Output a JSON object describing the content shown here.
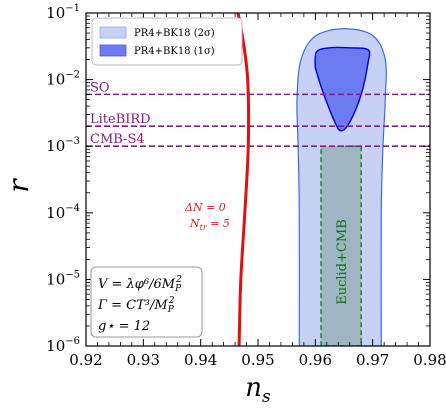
{
  "chart_data": {
    "type": "line",
    "xlabel": "n_s",
    "ylabel": "r",
    "xlim": [
      0.92,
      0.98
    ],
    "ylim": [
      1e-06,
      0.1
    ],
    "yscale": "log",
    "xticks": [
      "0.92",
      "0.93",
      "0.94",
      "0.95",
      "0.96",
      "0.97",
      "0.98"
    ],
    "yticks": [
      {
        "base": "10",
        "exp": "−6",
        "value": 1e-06
      },
      {
        "base": "10",
        "exp": "−5",
        "value": 1e-05
      },
      {
        "base": "10",
        "exp": "−4",
        "value": 0.0001
      },
      {
        "base": "10",
        "exp": "−3",
        "value": 0.001
      },
      {
        "base": "10",
        "exp": "−2",
        "value": 0.01
      },
      {
        "base": "10",
        "exp": "−1",
        "value": 0.1
      }
    ],
    "legend": {
      "placement": "top-left",
      "entries": [
        {
          "label": "PR4+BK18 (2σ)",
          "color": "#c6d1f5"
        },
        {
          "label": "PR4+BK18 (1σ)",
          "color": "#6a7cf0"
        }
      ]
    },
    "contour_2sigma": {
      "color": "#c6d1f5",
      "edge": "#3a6fd8",
      "points": [
        [
          0.9572,
          1e-06
        ],
        [
          0.9572,
          0.0001
        ],
        [
          0.957,
          0.001
        ],
        [
          0.9568,
          0.005
        ],
        [
          0.9575,
          0.02
        ],
        [
          0.96,
          0.045
        ],
        [
          0.965,
          0.058
        ],
        [
          0.97,
          0.046
        ],
        [
          0.9722,
          0.02
        ],
        [
          0.9722,
          0.005
        ],
        [
          0.9718,
          0.001
        ],
        [
          0.9715,
          0.0001
        ],
        [
          0.9715,
          1e-06
        ]
      ]
    },
    "contour_1sigma": {
      "color": "#6a7cf0",
      "edge": "#0000cc",
      "points": [
        [
          0.96,
          0.015
        ],
        [
          0.9602,
          0.026
        ],
        [
          0.9625,
          0.03
        ],
        [
          0.966,
          0.03
        ],
        [
          0.9692,
          0.028
        ],
        [
          0.9692,
          0.018
        ],
        [
          0.968,
          0.006
        ],
        [
          0.966,
          0.0023
        ],
        [
          0.9645,
          0.0017
        ],
        [
          0.9633,
          0.0024
        ],
        [
          0.9612,
          0.007
        ],
        [
          0.96,
          0.015
        ]
      ]
    },
    "forecast_box": {
      "label": "Euclid+CMB",
      "color": "#9db6c2",
      "edge": "#1b7a1b",
      "x": [
        0.961,
        0.968
      ],
      "y": [
        1e-06,
        0.001
      ]
    },
    "hlines": [
      {
        "label": "SO",
        "r": 0.006,
        "color": "#8b1a8b"
      },
      {
        "label": "LiteBIRD",
        "r": 0.002,
        "color": "#8b1a8b"
      },
      {
        "label": "CMB-S4",
        "r": 0.001,
        "color": "#8b1a8b"
      }
    ],
    "prediction": {
      "color": "#e01010",
      "label_dn": "ΔN = 0",
      "label_ntr": "N_tr = 5",
      "points": [
        [
          0.9467,
          1e-06
        ],
        [
          0.947,
          1e-05
        ],
        [
          0.9477,
          0.0001
        ],
        [
          0.9483,
          0.001
        ],
        [
          0.9482,
          0.01
        ],
        [
          0.9472,
          0.05
        ],
        [
          0.9465,
          0.1
        ]
      ]
    },
    "model_box": {
      "lines": [
        "V = λφ⁶/6M_P²",
        "Γ = CT³/M_P²",
        "g⋆ = 12"
      ]
    }
  }
}
